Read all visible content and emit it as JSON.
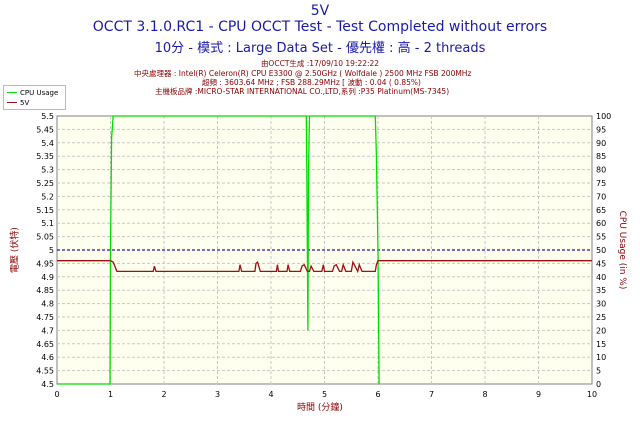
{
  "header": {
    "title": "5V",
    "subtitle1": "OCCT 3.1.0.RC1 - CPU OCCT Test - Test Completed without errors",
    "subtitle2": "10分 - 模式 : Large Data Set - 優先權 : 高 - 2 threads",
    "generated": "由OCCT生成 :17/09/10 19:22:22",
    "cpu": "中央處理器 : Intel(R) Celeron(R) CPU E3300 @ 2.50GHz ( Wolfdale ) 2500 MHz FSB 200MHz",
    "clock": "超頻 : 3603.64 MHz ; FSB 288.29MHz [ 波動 : 0.04 ( 0.85%)",
    "board": "主機板品牌 :MICRO-STAR INTERNATIONAL CO.,LTD,系列 :P35 Platinum(MS-7345)"
  },
  "colors": {
    "background": "#fffff0",
    "grid": "#c8c8c8",
    "cpu_line": "#00dd00",
    "v5_line": "#a01010",
    "reference_line": "#1a1aa6",
    "title": "#1a1aa6",
    "axis_label": "#8b0000"
  },
  "chart_data": {
    "type": "line",
    "xlabel": "時間 (分鐘)",
    "ylabel_left": "電壓 (伏特)",
    "ylabel_right": "CPU Usage (in %)",
    "xlim": [
      0,
      10
    ],
    "ylim_left": [
      4.5,
      5.5
    ],
    "ylim_right": [
      0,
      100
    ],
    "x_ticks": [
      0,
      1,
      2,
      3,
      4,
      5,
      6,
      7,
      8,
      9,
      10
    ],
    "y_left_ticks": [
      "4.5",
      "4.55",
      "4.6",
      "4.65",
      "4.7",
      "4.75",
      "4.8",
      "4.85",
      "4.9",
      "4.95",
      "5",
      "5.05",
      "5.1",
      "5.15",
      "5.2",
      "5.25",
      "5.3",
      "5.35",
      "5.4",
      "5.45",
      "5.5"
    ],
    "y_right_ticks": [
      0,
      5,
      10,
      15,
      20,
      25,
      30,
      35,
      40,
      45,
      50,
      55,
      60,
      65,
      70,
      75,
      80,
      85,
      90,
      95,
      100
    ],
    "grid": true,
    "legend": [
      "CPU Usage",
      "5V"
    ],
    "legend_position": "top-left",
    "reference_y": 5.0,
    "series": [
      {
        "name": "CPU Usage",
        "axis": "right",
        "x": [
          0,
          0.99,
          1.0,
          1.02,
          1.05,
          1.08,
          1.1,
          4.66,
          4.67,
          4.69,
          4.7,
          4.72,
          4.73,
          5.95,
          5.97,
          6.0,
          6.02,
          6.03
        ],
        "y": [
          0,
          0,
          50,
          92,
          100,
          100,
          100,
          100,
          80,
          20,
          80,
          100,
          100,
          100,
          85,
          50,
          0,
          0
        ]
      },
      {
        "name": "5V",
        "axis": "left",
        "x": [
          0,
          0.99,
          1.0,
          1.05,
          1.1,
          1.12,
          1.2,
          1.8,
          1.82,
          1.85,
          1.9,
          3.4,
          3.42,
          3.45,
          3.5,
          3.7,
          3.72,
          3.75,
          3.8,
          3.85,
          3.9,
          4.1,
          4.12,
          4.14,
          4.2,
          4.3,
          4.32,
          4.35,
          4.4,
          4.55,
          4.58,
          4.62,
          4.68,
          4.72,
          4.75,
          4.8,
          4.95,
          4.98,
          5.0,
          5.05,
          5.15,
          5.18,
          5.22,
          5.28,
          5.32,
          5.35,
          5.4,
          5.5,
          5.53,
          5.57,
          5.62,
          5.65,
          5.7,
          5.95,
          5.97,
          6.0,
          6.05,
          10
        ],
        "y": [
          4.96,
          4.96,
          4.96,
          4.955,
          4.93,
          4.92,
          4.92,
          4.92,
          4.94,
          4.92,
          4.92,
          4.92,
          4.945,
          4.92,
          4.92,
          4.92,
          4.95,
          4.955,
          4.92,
          4.92,
          4.92,
          4.92,
          4.945,
          4.92,
          4.92,
          4.92,
          4.945,
          4.92,
          4.92,
          4.92,
          4.94,
          4.945,
          4.92,
          4.92,
          4.94,
          4.92,
          4.92,
          4.945,
          4.92,
          4.92,
          4.92,
          4.94,
          4.945,
          4.92,
          4.92,
          4.945,
          4.92,
          4.92,
          4.955,
          4.94,
          4.92,
          4.945,
          4.92,
          4.92,
          4.945,
          4.96,
          4.96,
          4.96
        ]
      }
    ]
  }
}
